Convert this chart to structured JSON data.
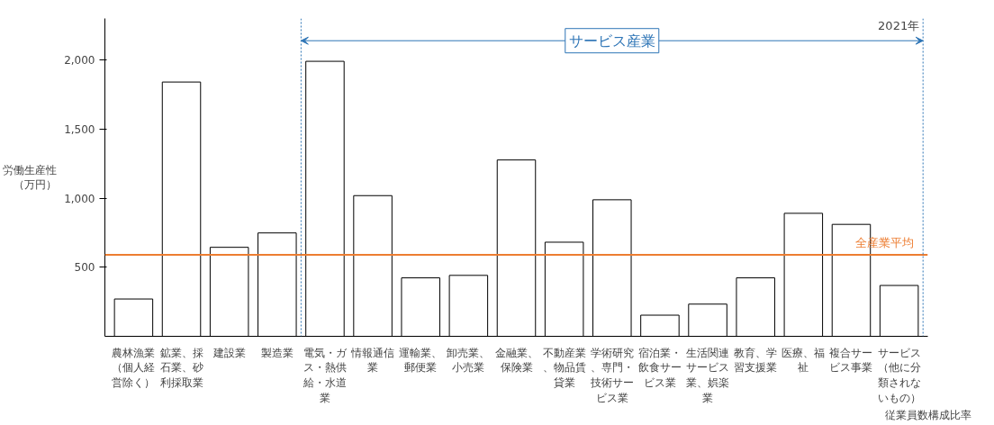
{
  "chart_data": {
    "type": "bar",
    "categories": [
      "農林漁業（個人経営除く）",
      "鉱業、採石業、砂利採取業",
      "建設業",
      "製造業",
      "電気・ガス・熱供給・水道業",
      "情報通信業",
      "運輸業、郵便業",
      "卸売業、小売業",
      "金融業、保険業",
      "不動産業、物品賃貸業",
      "学術研究、専門・技術サービス業",
      "宿泊業・飲食サービス業",
      "生活関連サービス業、娯楽業",
      "教育、学習支援業",
      "医療、福祉",
      "複合サービス事業",
      "サービス（他に分類されないもの）"
    ],
    "values": [
      270,
      1840,
      644,
      748,
      1990,
      1018,
      423,
      441,
      1276,
      681,
      988,
      153,
      233,
      423,
      890,
      810,
      368
    ],
    "color": "#ffffff",
    "ylabel": "労働生産性（万円）",
    "xlabel": "従業員数構成比率",
    "annotations": [
      "2021年",
      "サービス産業"
    ],
    "ylim": [
      0,
      2300
    ],
    "yticks": [
      {
        "value": 500,
        "label": "500"
      },
      {
        "value": 1000,
        "label": "1,000"
      },
      {
        "value": 1500,
        "label": "1,500"
      },
      {
        "value": 2000,
        "label": "2,000"
      }
    ],
    "ref_lines": [
      {
        "axis": "y",
        "value": 590,
        "label": "全産業平均",
        "color": "#ed7d31"
      }
    ],
    "grid": false
  }
}
